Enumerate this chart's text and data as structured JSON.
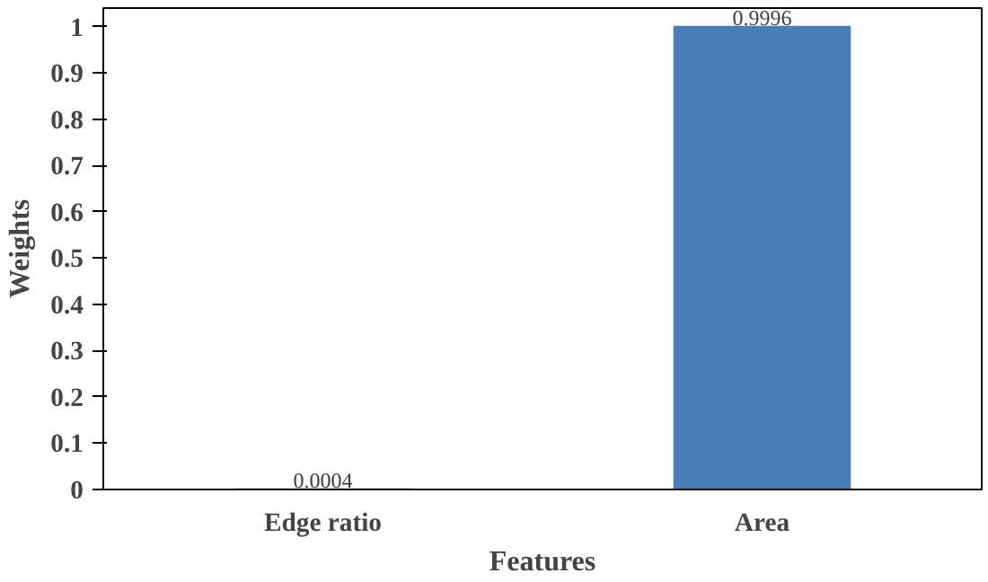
{
  "chart_data": {
    "type": "bar",
    "xlabel": "Features",
    "ylabel": "Weights",
    "categories": [
      "Edge ratio",
      "Area"
    ],
    "values": [
      0.0004,
      0.9996
    ],
    "color": "#4a7ebb",
    "ylim": [
      0,
      1.04
    ],
    "yticks": [
      0,
      0.1,
      0.2,
      0.3,
      0.4,
      0.5,
      0.6,
      0.7,
      0.8,
      0.9,
      1
    ],
    "data_labels": true,
    "grid": false
  }
}
